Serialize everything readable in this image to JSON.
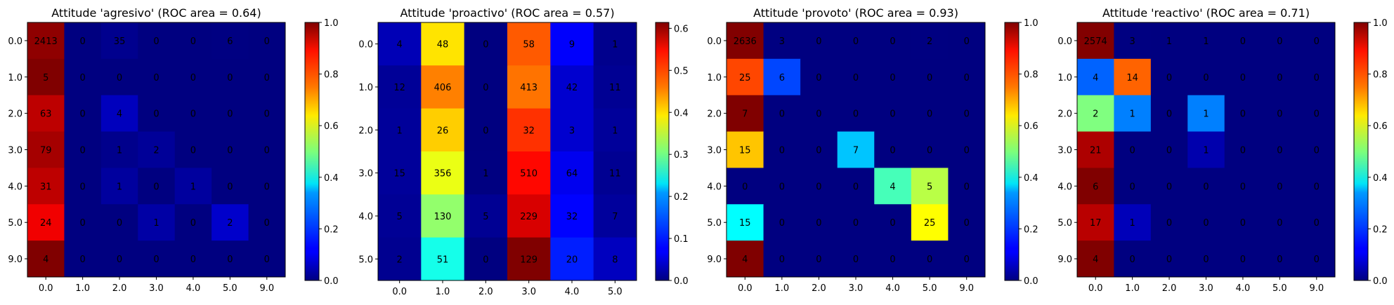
{
  "chart_data": [
    {
      "type": "heatmap",
      "title": "Attitude 'agresivo' (ROC area = 0.64)",
      "x_ticks": [
        "0.0",
        "1.0",
        "2.0",
        "3.0",
        "4.0",
        "5.0",
        "9.0"
      ],
      "y_ticks": [
        "0.0",
        "1.0",
        "2.0",
        "3.0",
        "4.0",
        "5.0",
        "9.0"
      ],
      "matrix": [
        [
          2413,
          0,
          35,
          0,
          0,
          6,
          0
        ],
        [
          5,
          0,
          0,
          0,
          0,
          0,
          0
        ],
        [
          63,
          0,
          4,
          0,
          0,
          0,
          0
        ],
        [
          79,
          0,
          1,
          2,
          0,
          0,
          0
        ],
        [
          31,
          0,
          1,
          0,
          1,
          0,
          0
        ],
        [
          24,
          0,
          0,
          1,
          0,
          2,
          0
        ],
        [
          4,
          0,
          0,
          0,
          0,
          0,
          0
        ]
      ],
      "normalized": [
        [
          0.985,
          0,
          0.014,
          0,
          0,
          0.002,
          0
        ],
        [
          1.0,
          0,
          0,
          0,
          0,
          0,
          0
        ],
        [
          0.94,
          0,
          0.06,
          0,
          0,
          0,
          0
        ],
        [
          0.963,
          0,
          0.012,
          0.024,
          0,
          0,
          0
        ],
        [
          0.939,
          0,
          0.03,
          0,
          0.03,
          0,
          0
        ],
        [
          0.889,
          0,
          0,
          0.037,
          0,
          0.074,
          0
        ],
        [
          1.0,
          0,
          0,
          0,
          0,
          0,
          0
        ]
      ],
      "colorbar": {
        "min": 0.0,
        "max": 1.0,
        "ticks": [
          "0.0",
          "0.2",
          "0.4",
          "0.6",
          "0.8",
          "1.0"
        ],
        "tick_values": [
          0,
          0.2,
          0.4,
          0.6,
          0.8,
          1.0
        ],
        "colormap": "jet"
      }
    },
    {
      "type": "heatmap",
      "title": "Attitude 'proactivo' (ROC area = 0.57)",
      "x_ticks": [
        "0.0",
        "1.0",
        "2.0",
        "3.0",
        "4.0",
        "5.0"
      ],
      "y_ticks": [
        "0.0",
        "1.0",
        "2.0",
        "3.0",
        "4.0",
        "5.0"
      ],
      "matrix": [
        [
          4,
          48,
          0,
          58,
          9,
          1
        ],
        [
          12,
          406,
          0,
          413,
          42,
          11
        ],
        [
          1,
          26,
          0,
          32,
          3,
          1
        ],
        [
          15,
          356,
          1,
          510,
          64,
          11
        ],
        [
          5,
          130,
          5,
          229,
          32,
          7
        ],
        [
          2,
          51,
          0,
          129,
          20,
          8
        ]
      ],
      "normalized": [
        [
          0.033,
          0.4,
          0,
          0.483,
          0.075,
          0.008
        ],
        [
          0.014,
          0.46,
          0,
          0.468,
          0.048,
          0.012
        ],
        [
          0.016,
          0.413,
          0,
          0.508,
          0.048,
          0.016
        ],
        [
          0.016,
          0.372,
          0.001,
          0.533,
          0.067,
          0.011
        ],
        [
          0.013,
          0.319,
          0.012,
          0.561,
          0.078,
          0.017
        ],
        [
          0.01,
          0.243,
          0,
          0.614,
          0.095,
          0.038
        ]
      ],
      "colorbar": {
        "min": 0.0,
        "max": 0.614,
        "ticks": [
          "0.0",
          "0.1",
          "0.2",
          "0.3",
          "0.4",
          "0.5",
          "0.6"
        ],
        "tick_values": [
          0,
          0.1,
          0.2,
          0.3,
          0.4,
          0.5,
          0.6
        ],
        "colormap": "jet"
      }
    },
    {
      "type": "heatmap",
      "title": "Attitude 'provoto' (ROC area = 0.93)",
      "x_ticks": [
        "0.0",
        "1.0",
        "2.0",
        "3.0",
        "4.0",
        "5.0",
        "9.0"
      ],
      "y_ticks": [
        "0.0",
        "1.0",
        "2.0",
        "3.0",
        "4.0",
        "5.0",
        "9.0"
      ],
      "matrix": [
        [
          2636,
          3,
          0,
          0,
          0,
          2,
          0
        ],
        [
          25,
          6,
          0,
          0,
          0,
          0,
          0
        ],
        [
          7,
          0,
          0,
          0,
          0,
          0,
          0
        ],
        [
          15,
          0,
          0,
          7,
          0,
          0,
          0
        ],
        [
          0,
          0,
          0,
          0,
          4,
          5,
          0
        ],
        [
          15,
          0,
          0,
          0,
          0,
          25,
          0
        ],
        [
          4,
          0,
          0,
          0,
          0,
          0,
          0
        ]
      ],
      "normalized": [
        [
          0.998,
          0.001,
          0,
          0,
          0,
          0.001,
          0
        ],
        [
          0.806,
          0.194,
          0,
          0,
          0,
          0,
          0
        ],
        [
          1.0,
          0,
          0,
          0,
          0,
          0,
          0
        ],
        [
          0.682,
          0,
          0,
          0.318,
          0,
          0,
          0
        ],
        [
          0,
          0,
          0,
          0,
          0.444,
          0.556,
          0
        ],
        [
          0.375,
          0,
          0,
          0,
          0,
          0.625,
          0
        ],
        [
          1.0,
          0,
          0,
          0,
          0,
          0,
          0
        ]
      ],
      "colorbar": {
        "min": 0.0,
        "max": 1.0,
        "ticks": [
          "0.0",
          "0.2",
          "0.4",
          "0.6",
          "0.8",
          "1.0"
        ],
        "tick_values": [
          0,
          0.2,
          0.4,
          0.6,
          0.8,
          1.0
        ],
        "colormap": "jet"
      }
    },
    {
      "type": "heatmap",
      "title": "Attitude 'reactivo' (ROC area = 0.71)",
      "x_ticks": [
        "0.0",
        "1.0",
        "2.0",
        "3.0",
        "4.0",
        "5.0",
        "9.0"
      ],
      "y_ticks": [
        "0.0",
        "1.0",
        "2.0",
        "3.0",
        "4.0",
        "5.0",
        "9.0"
      ],
      "matrix": [
        [
          2574,
          3,
          1,
          1,
          0,
          0,
          0
        ],
        [
          4,
          14,
          0,
          0,
          0,
          0,
          0
        ],
        [
          2,
          1,
          0,
          1,
          0,
          0,
          0
        ],
        [
          21,
          0,
          0,
          1,
          0,
          0,
          0
        ],
        [
          6,
          0,
          0,
          0,
          0,
          0,
          0
        ],
        [
          17,
          1,
          0,
          0,
          0,
          0,
          0
        ],
        [
          4,
          0,
          0,
          0,
          0,
          0,
          0
        ]
      ],
      "normalized": [
        [
          0.998,
          0.001,
          0,
          0,
          0,
          0,
          0
        ],
        [
          0.222,
          0.778,
          0,
          0,
          0,
          0,
          0
        ],
        [
          0.5,
          0.25,
          0,
          0.25,
          0,
          0,
          0
        ],
        [
          0.955,
          0,
          0,
          0.045,
          0,
          0,
          0
        ],
        [
          1.0,
          0,
          0,
          0,
          0,
          0,
          0
        ],
        [
          0.944,
          0.056,
          0,
          0,
          0,
          0,
          0
        ],
        [
          1.0,
          0,
          0,
          0,
          0,
          0,
          0
        ]
      ],
      "colorbar": {
        "min": 0.0,
        "max": 1.0,
        "ticks": [
          "0.0",
          "0.2",
          "0.4",
          "0.6",
          "0.8",
          "1.0"
        ],
        "tick_values": [
          0,
          0.2,
          0.4,
          0.6,
          0.8,
          1.0
        ],
        "colormap": "jet"
      }
    }
  ]
}
